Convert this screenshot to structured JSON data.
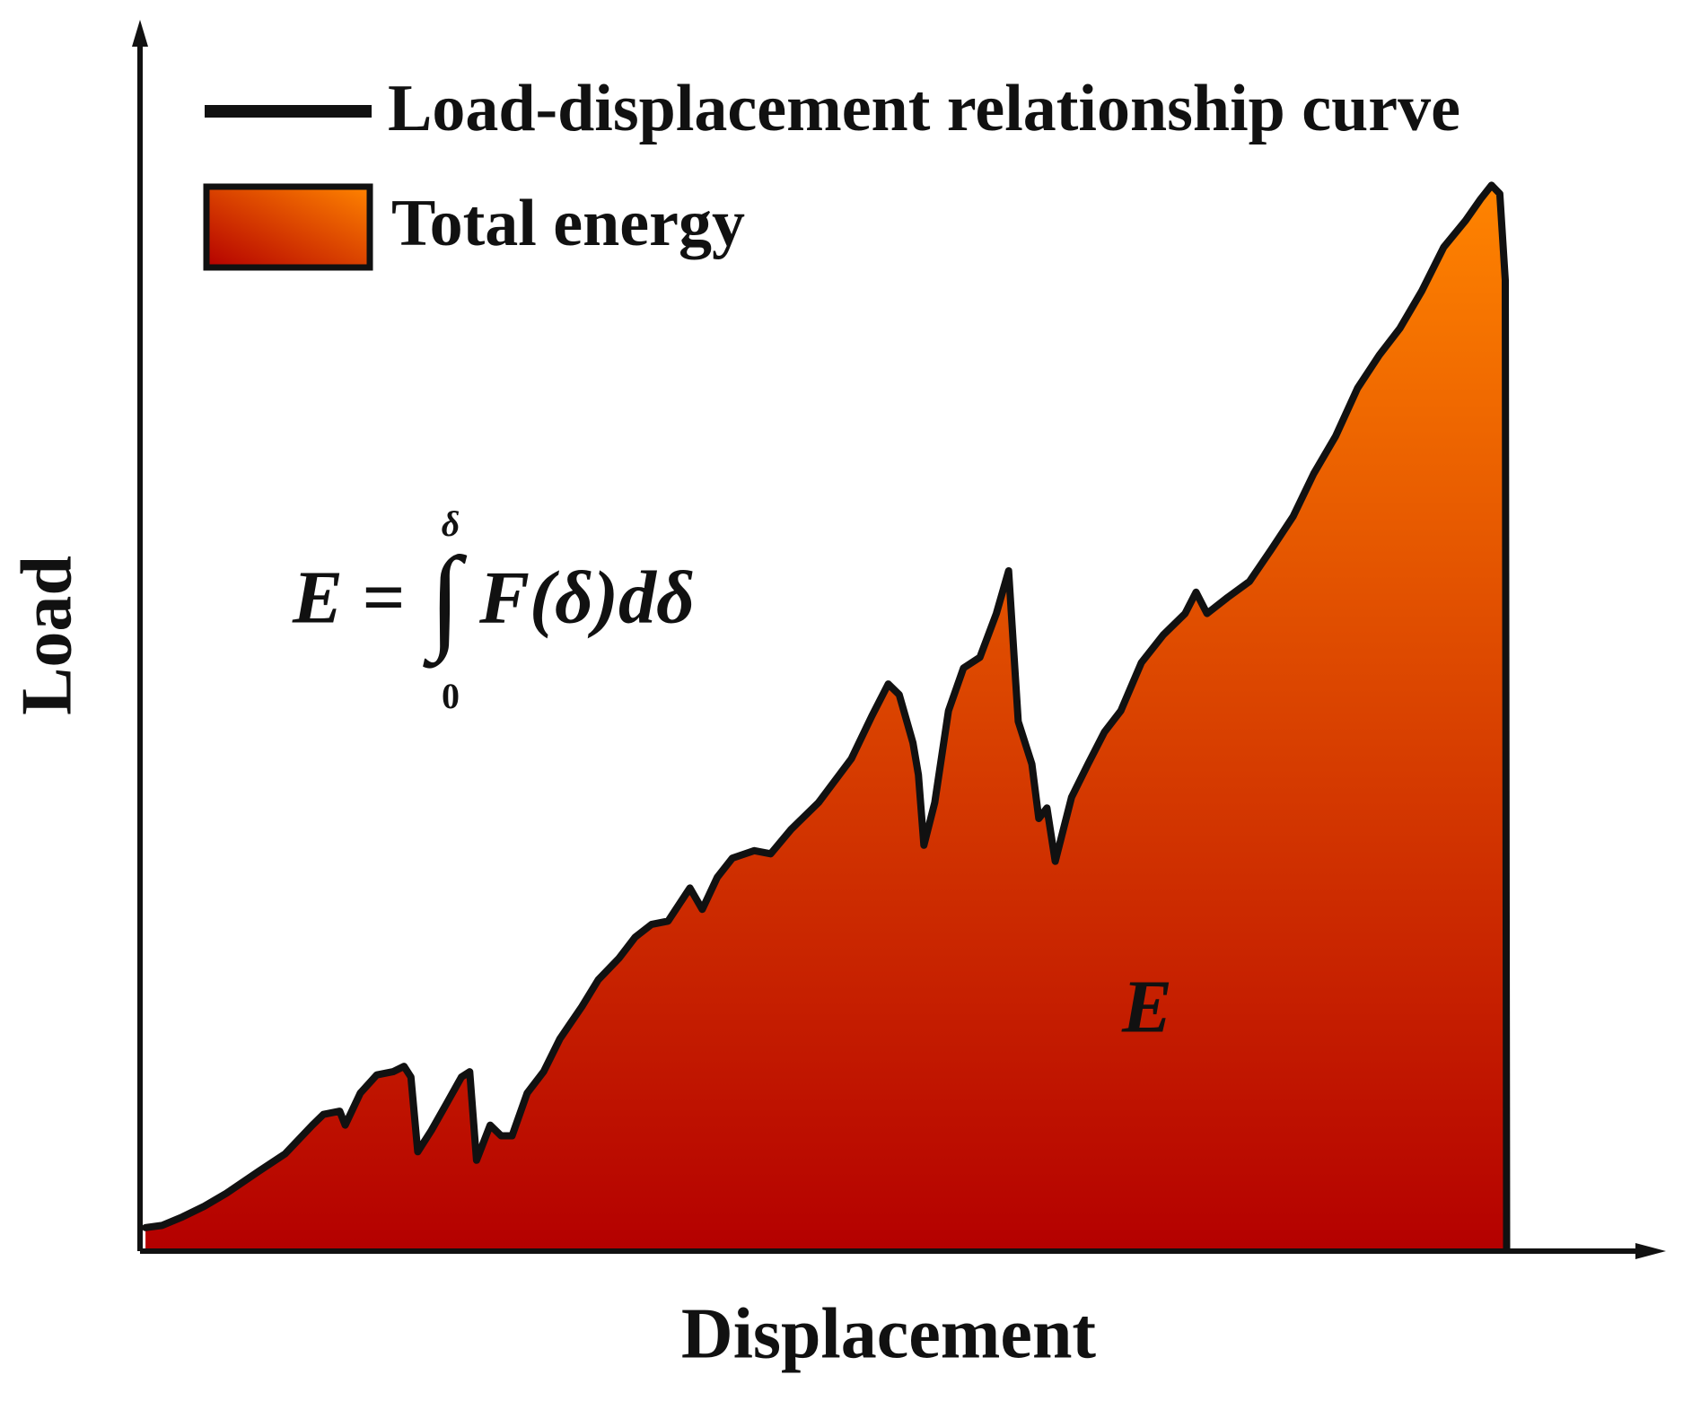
{
  "chart_data": {
    "type": "area-line",
    "xlabel": "Displacement",
    "ylabel": "Load",
    "xlim": [
      0,
      100
    ],
    "ylim": [
      0,
      100
    ],
    "x": [
      0.4,
      1.6,
      3.1,
      4.7,
      6.3,
      8.7,
      10.6,
      12.6,
      13.4,
      14.6,
      15.0,
      16.1,
      17.3,
      18.5,
      19.3,
      19.8,
      20.3,
      21.3,
      22.4,
      23.5,
      24.1,
      24.6,
      25.6,
      26.4,
      27.2,
      28.3,
      29.5,
      30.7,
      32.3,
      33.5,
      35.0,
      36.2,
      37.4,
      38.6,
      40.2,
      41.1,
      42.2,
      43.3,
      44.9,
      46.1,
      47.6,
      49.6,
      52.0,
      53.5,
      54.7,
      55.5,
      56.5,
      56.9,
      57.3,
      58.1,
      59.1,
      60.2,
      61.4,
      62.6,
      63.5,
      64.2,
      65.2,
      65.7,
      66.3,
      66.9,
      68.1,
      69.3,
      70.5,
      71.7,
      73.2,
      74.8,
      76.4,
      77.2,
      78.0,
      79.5,
      81.1,
      82.7,
      84.3,
      85.8,
      87.4,
      89.0,
      90.6,
      92.1,
      93.7,
      95.3,
      96.9,
      98.0,
      98.8,
      99.4,
      99.8,
      99.9
    ],
    "series": [
      {
        "name": "Load-displacement relationship curve",
        "color": "#111111",
        "values": [
          2.2,
          2.4,
          3.2,
          4.2,
          5.4,
          7.5,
          9.1,
          11.8,
          12.8,
          13.1,
          11.8,
          14.8,
          16.5,
          16.8,
          17.3,
          16.3,
          9.3,
          11.3,
          13.8,
          16.3,
          16.8,
          8.5,
          11.8,
          10.8,
          10.8,
          14.8,
          16.8,
          19.9,
          22.9,
          25.4,
          27.4,
          29.4,
          30.6,
          30.9,
          34.0,
          32.0,
          35.0,
          36.8,
          37.5,
          37.2,
          39.5,
          42.0,
          46.1,
          50.1,
          53.1,
          52.1,
          47.6,
          44.6,
          38.0,
          42.0,
          50.6,
          54.6,
          55.6,
          59.7,
          63.7,
          49.6,
          45.6,
          40.5,
          41.5,
          36.5,
          42.5,
          45.6,
          48.6,
          50.6,
          55.1,
          57.7,
          59.7,
          61.7,
          59.7,
          61.2,
          62.7,
          65.7,
          68.8,
          72.8,
          76.3,
          80.8,
          83.9,
          86.4,
          89.9,
          94.0,
          96.5,
          98.5,
          99.8,
          99.0,
          90.9,
          0.2
        ]
      }
    ],
    "area": {
      "name": "Total energy",
      "colors": [
        "#b40000",
        "#ff8400"
      ],
      "label": "E"
    },
    "formula": {
      "lhs": "E =",
      "integral": "∫",
      "upper": "δ",
      "lower": "0",
      "body": "F(δ)dδ"
    }
  }
}
